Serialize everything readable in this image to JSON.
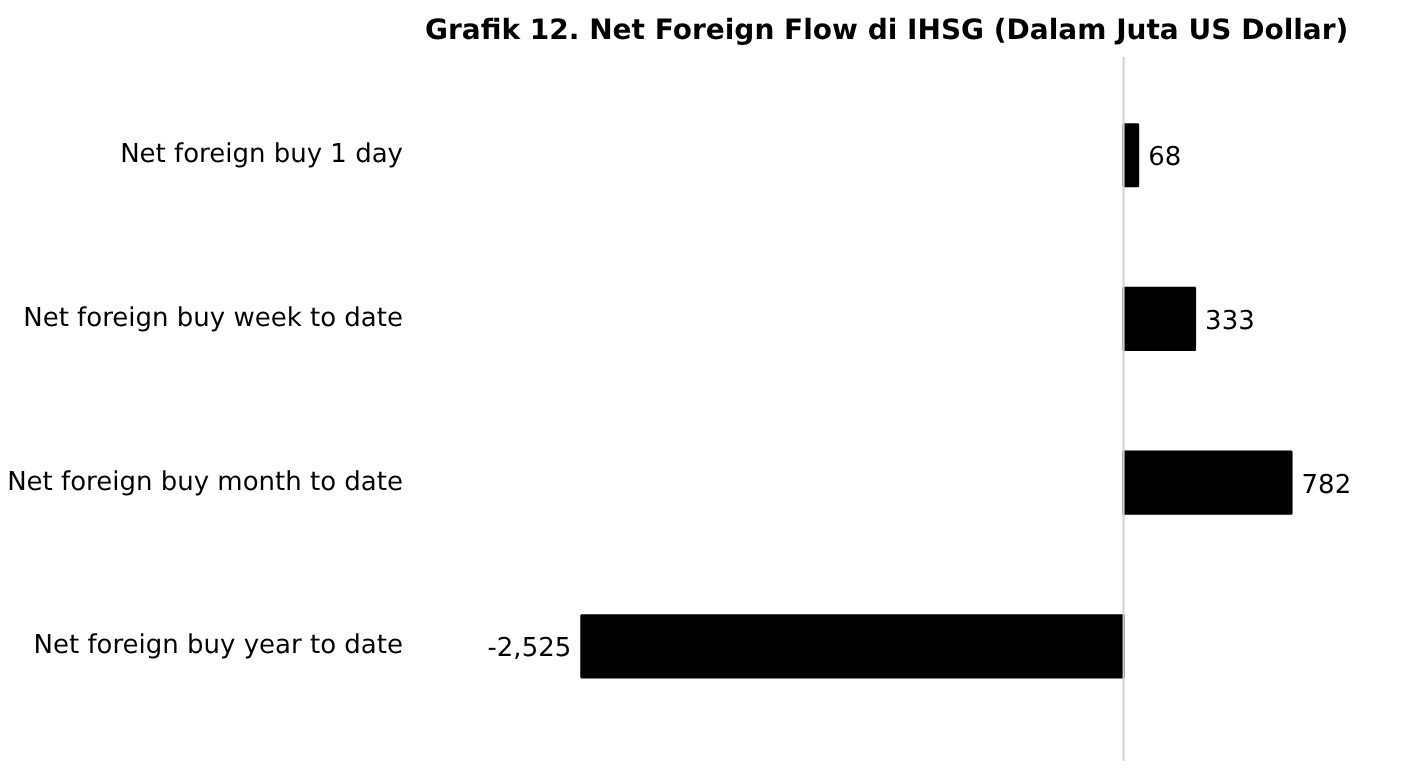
{
  "chart_data": {
    "type": "bar",
    "orientation": "horizontal",
    "title": "Grafik 12. Net Foreign Flow di IHSG (Dalam Juta US Dollar)",
    "categories": [
      "Net foreign buy 1 day",
      "Net foreign buy week to date",
      "Net foreign buy month to date",
      "Net foreign buy year to date"
    ],
    "values": [
      68,
      333,
      782,
      -2525
    ],
    "value_labels": [
      "68",
      "333",
      "782",
      "-2,525"
    ],
    "color": "#000000"
  }
}
